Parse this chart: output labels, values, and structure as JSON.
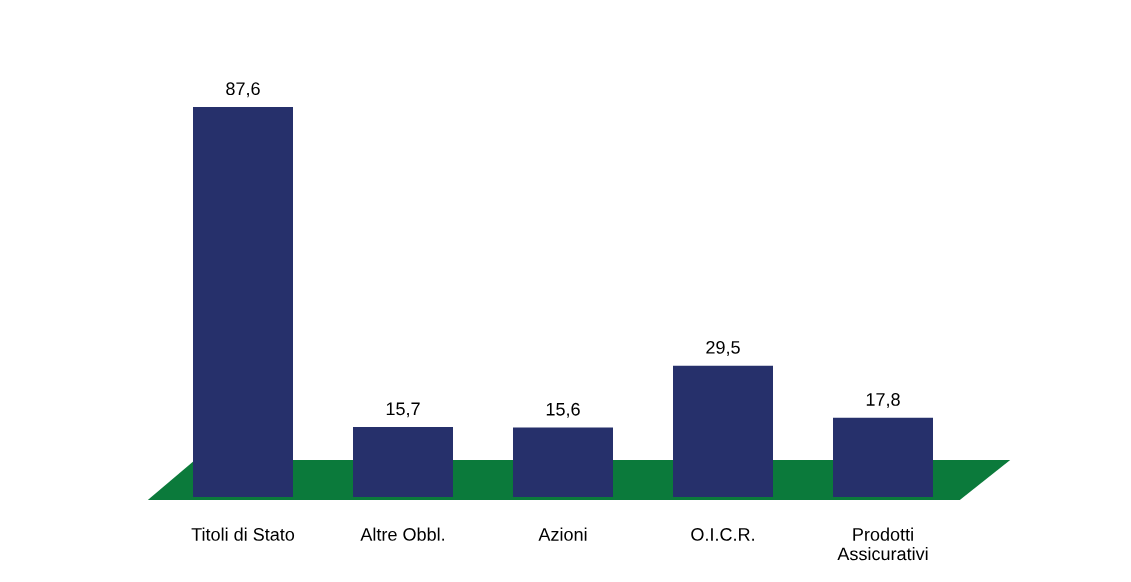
{
  "chart_data": {
    "type": "bar",
    "categories": [
      "Titoli di Stato",
      "Altre Obbl.",
      "Azioni",
      "O.I.C.R.",
      "Prodotti\nAssicurativi"
    ],
    "values": [
      87.6,
      15.7,
      15.6,
      29.5,
      17.8
    ],
    "color": "#26306b",
    "value_labels": [
      "87,6",
      "15,7",
      "15,6",
      "29,5",
      "17,8"
    ]
  }
}
